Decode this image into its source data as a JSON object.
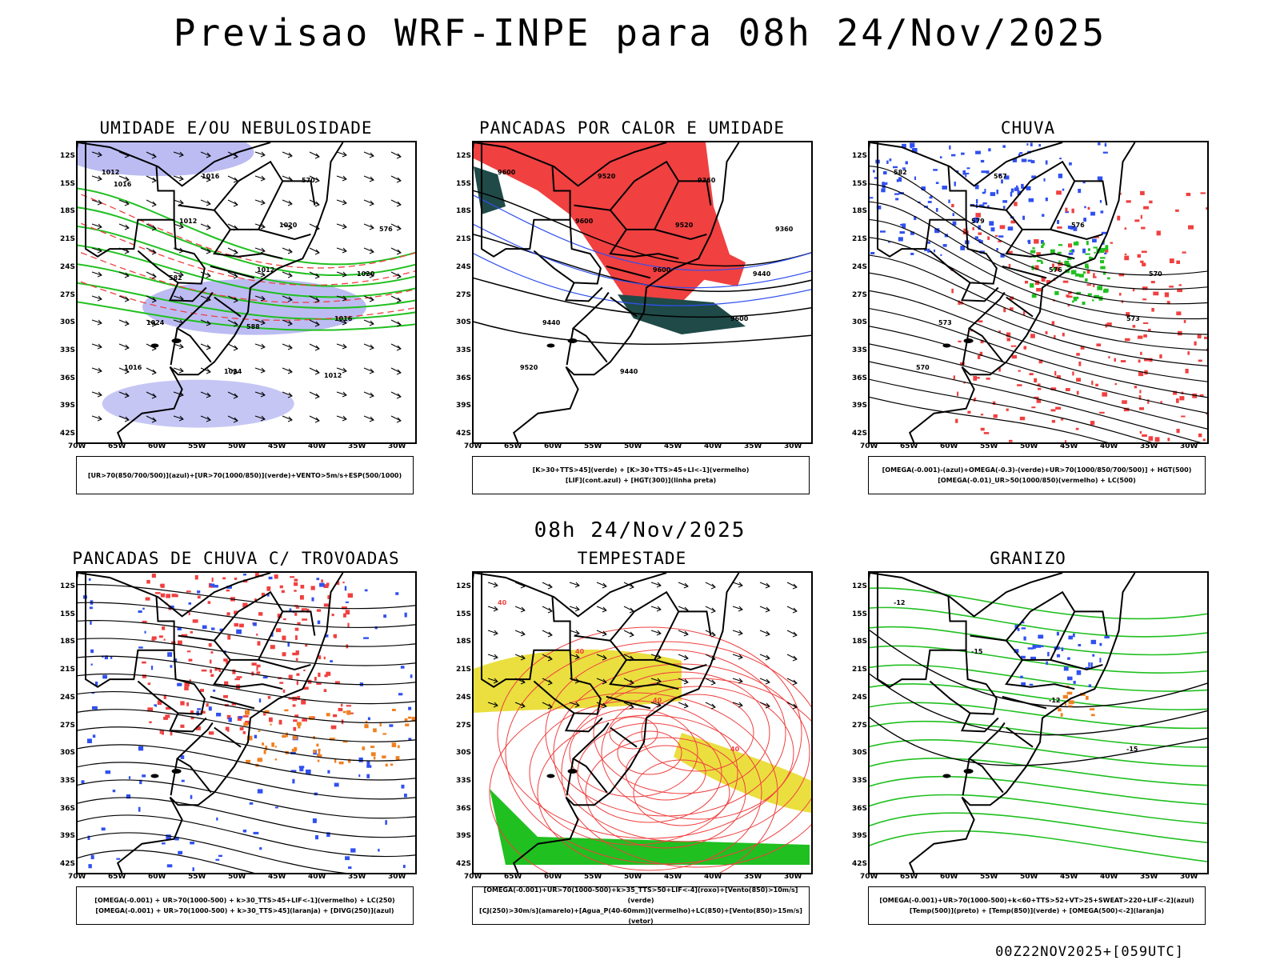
{
  "header": {
    "title": "Previsao WRF-INPE  para 08h 24/Nov/2025"
  },
  "mid_label": "08h 24/Nov/2025",
  "footer": "00Z22NOV2025+[059UTC]",
  "axes": {
    "lat": [
      "12S",
      "15S",
      "18S",
      "21S",
      "24S",
      "27S",
      "30S",
      "33S",
      "36S",
      "39S",
      "42S"
    ],
    "lon": [
      "70W",
      "65W",
      "60W",
      "55W",
      "50W",
      "45W",
      "40W",
      "35W",
      "30W"
    ]
  },
  "colors": {
    "blue": "#3050f0",
    "lavender": "#a0a0ee",
    "green": "#20c020",
    "red": "#f04040",
    "teal": "#1f4a48",
    "yellow": "#e8dc2a",
    "orange": "#f08020"
  },
  "panels": [
    {
      "title": "UMIDADE E/OU NEBULOSIDADE",
      "legend": [
        "[UR>70(850/700/500)](azul)+[UR>70(1000/850)](verde)+VENTO>5m/s+ESP(500/1000)"
      ],
      "labels": [
        "1012",
        "1012",
        "1012",
        "1016",
        "1016",
        "1016",
        "1020",
        "1020",
        "1024",
        "1024",
        "570",
        "576",
        "582",
        "588",
        "1012",
        "1016"
      ]
    },
    {
      "title": "PANCADAS POR CALOR E UMIDADE",
      "legend": [
        "[K>30+TTS>45](verde) + [K>30+TTS>45+LI<-1](vermelho)",
        "[LIF](cont.azul) + [HGT(300)](linha preta)"
      ],
      "labels": [
        "9600",
        "9600",
        "9600",
        "9600",
        "9520",
        "9520",
        "9520",
        "9440",
        "9440",
        "9440",
        "9360",
        "9360"
      ]
    },
    {
      "title": "CHUVA",
      "legend": [
        "[OMEGA(-0.001)-(azul)+OMEGA(-0.3)-(verde)+UR>70(1000/850/700/500)] + HGT(500)",
        "[OMEGA(-0.01)_UR>50(1000/850)(vermelho) + LC(500)"
      ],
      "labels": [
        "582",
        "579",
        "576",
        "573",
        "570",
        "567",
        "576",
        "570",
        "573"
      ]
    },
    {
      "title": "PANCADAS DE CHUVA C/ TROVOADAS",
      "legend": [
        "[OMEGA(-0.001) + UR>70(1000-500) + k>30_TTS>45+LIF<-1](vermelho) + LC(250)",
        "[OMEGA(-0.001) + UR>70(1000-500) + k>30_TTS>45](laranja) + [DIVG(250)](azul)"
      ],
      "labels": []
    },
    {
      "title": "TEMPESTADE",
      "legend": [
        "[OMEGA(-0.001)+UR>70(1000-500)+k>35_TTS>50+LIF<-4](roxo)+[Vento(850)>10m/s](verde)",
        "[CJ(250)>30m/s](amarelo)+[Agua_P(40-60mm)](vermelho)+LC(850)+[Vento(850)>15m/s](vetor)"
      ],
      "labels": [
        "40",
        "40",
        "40",
        "40"
      ]
    },
    {
      "title": "GRANIZO",
      "legend": [
        "[OMEGA(-0.001)+UR>70(1000-500)+k<60+TTS>52+VT>25+SWEAT>220+LIF<-2](azul)",
        "[Temp(500)](preto) + [Temp(850)](verde) + [OMEGA(500)<-2](laranja)"
      ],
      "labels": [
        "-12",
        "-15",
        "-12",
        "-15"
      ]
    }
  ]
}
